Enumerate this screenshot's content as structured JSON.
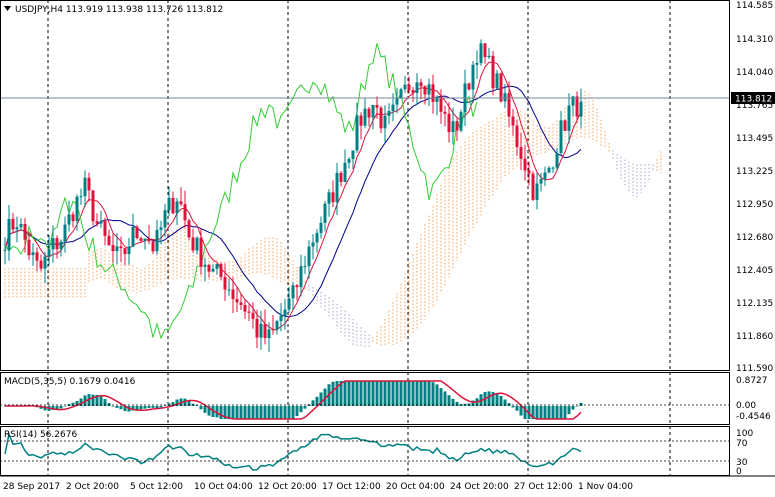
{
  "chart_header": {
    "title": "USDJPY,H4  113.919 113.938 113.726 113.812",
    "menu_icon": "triangle-down-icon"
  },
  "current_price_label": "113.812",
  "price_axis_labels": [
    "114.585",
    "114.310",
    "114.040",
    "113.765",
    "113.495",
    "113.225",
    "112.950",
    "112.680",
    "112.405",
    "112.135",
    "111.860",
    "111.590"
  ],
  "time_axis_labels": [
    "28 Sep 2017",
    "2 Oct 20:00",
    "5 Oct 12:00",
    "10 Oct 04:00",
    "12 Oct 20:00",
    "17 Oct 12:00",
    "20 Oct 04:00",
    "24 Oct 20:00",
    "27 Oct 12:00",
    "1 Nov 04:00"
  ],
  "macd_panel": {
    "title": "MACD(5,35,5) 0.1679 0.0416",
    "axis_labels": [
      "0.8727",
      "0.00",
      "-0.4546"
    ]
  },
  "rsi_panel": {
    "title": "RSI(14) 56.2676",
    "axis_labels": [
      "100",
      "70",
      "30",
      "0"
    ]
  },
  "colors": {
    "bull": "#008080",
    "bear": "#dc143c",
    "tenkan": "#dc143c",
    "kijun": "#00008b",
    "chikou": "#32cd32",
    "cloud_up": "#f4a460",
    "cloud_down": "#b0a0d0",
    "macd_signal": "#dc143c",
    "rsi_line": "#008080"
  },
  "chart_data": {
    "type": "candlestick",
    "symbol": "USDJPY",
    "timeframe": "H4",
    "ohlc_last": {
      "open": 113.919,
      "high": 113.938,
      "low": 113.726,
      "close": 113.812
    },
    "ylim": [
      111.59,
      114.585
    ],
    "close_path": [
      112.7,
      112.85,
      112.6,
      112.4,
      112.6,
      112.7,
      112.95,
      113.1,
      112.8,
      112.6,
      112.5,
      112.7,
      112.75,
      112.6,
      112.9,
      113.05,
      112.7,
      112.55,
      112.4,
      112.35,
      112.2,
      112.1,
      111.9,
      111.85,
      112.05,
      112.2,
      112.5,
      112.75,
      112.95,
      113.2,
      113.45,
      113.7,
      113.8,
      113.6,
      113.75,
      113.95,
      114.05,
      113.9,
      113.7,
      113.55,
      113.9,
      114.25,
      114.1,
      113.9,
      113.6,
      113.35,
      113.05,
      113.2,
      113.5,
      113.75,
      113.812
    ],
    "macd": {
      "last_main": 0.1679,
      "last_signal": 0.0416,
      "ylim": [
        -0.4546,
        0.8727
      ]
    },
    "rsi": {
      "last": 56.2676,
      "levels": [
        70,
        30
      ]
    }
  }
}
